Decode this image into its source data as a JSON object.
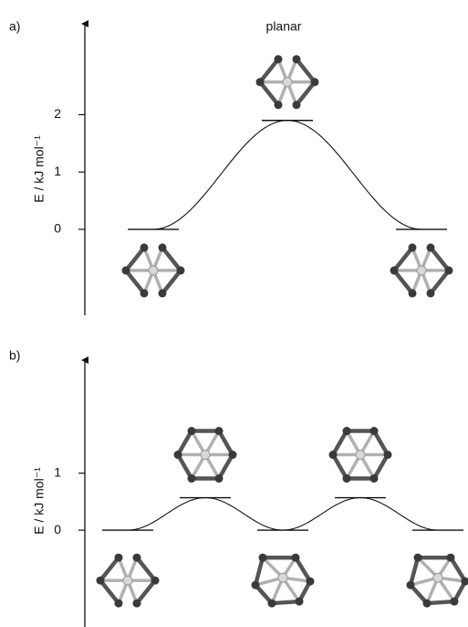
{
  "chart_data": [
    {
      "type": "energy_profile",
      "panel_label": "a)",
      "annotation": "planar",
      "y_label": "E / kJ mol⁻¹",
      "values": [
        0,
        1.9,
        0
      ],
      "ylim": [
        -1.5,
        3.65
      ],
      "yticks": [
        0,
        1,
        2
      ],
      "color": "#111111"
    },
    {
      "type": "energy_profile",
      "panel_label": "b)",
      "y_label": "E / kJ mol⁻¹",
      "values": [
        0,
        0.57,
        0,
        0.57,
        0
      ],
      "ylim": [
        -1.7,
        3.05
      ],
      "yticks": [
        0,
        1
      ],
      "color": "#111111"
    }
  ]
}
